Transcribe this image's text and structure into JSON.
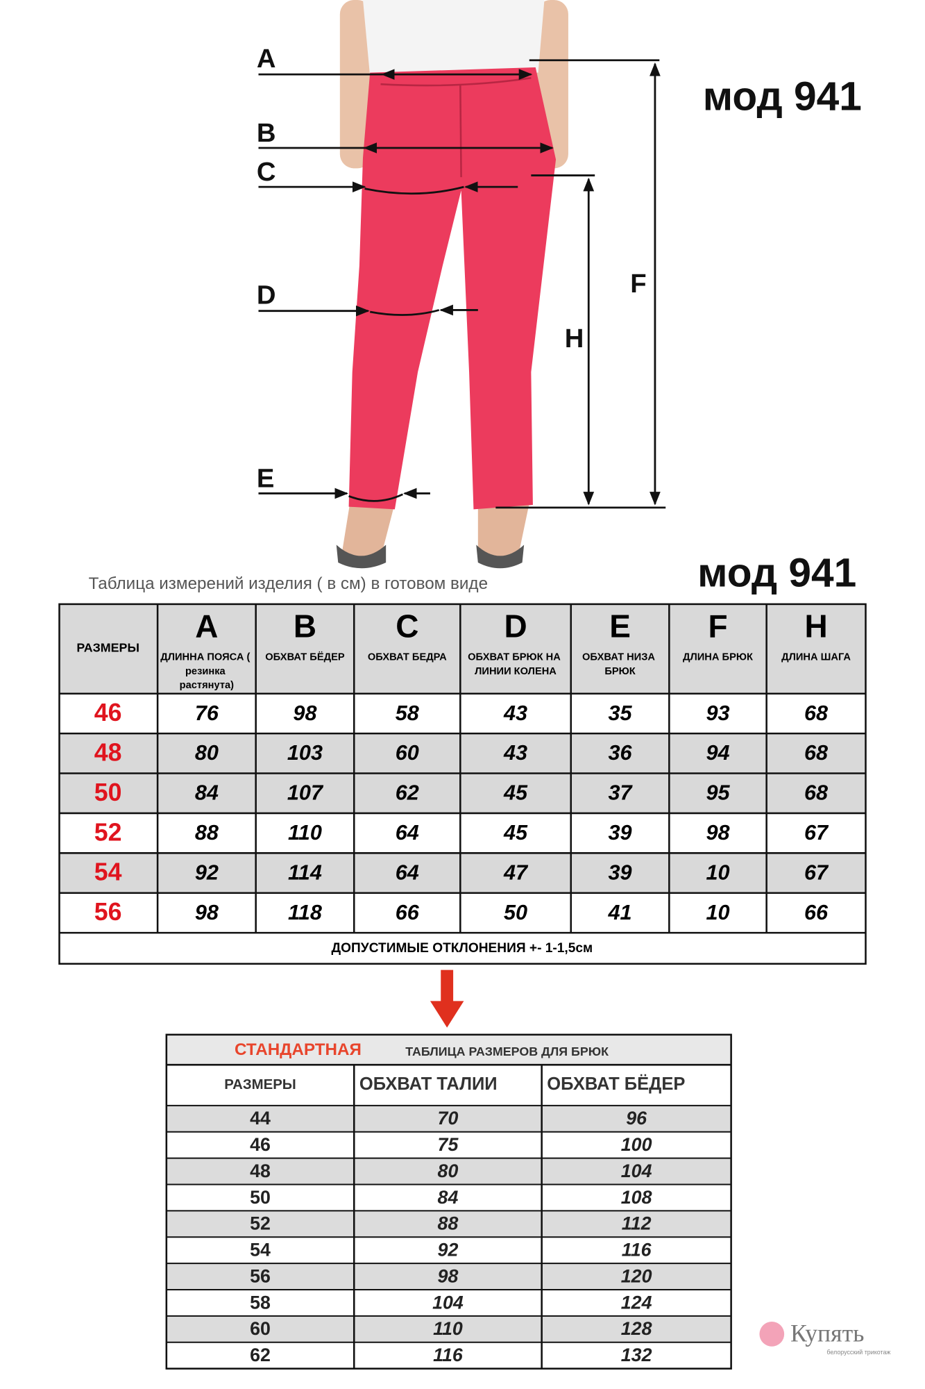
{
  "model": "мод 941",
  "illustration": {
    "labels": [
      "A",
      "B",
      "C",
      "D",
      "E",
      "F",
      "H"
    ]
  },
  "measurement_table": {
    "caption": "Таблица  измерений изделия ( в см) в готовом виде",
    "size_header": "РАЗМЕРЫ",
    "columns": [
      {
        "letter": "A",
        "label": "ДЛИННА ПОЯСА ( резинка растянута)"
      },
      {
        "letter": "B",
        "label": "ОБХВАТ БЁДЕР"
      },
      {
        "letter": "C",
        "label": "ОБХВАТ БЕДРА"
      },
      {
        "letter": "D",
        "label": "ОБХВАТ БРЮК НА ЛИНИИ КОЛЕНА"
      },
      {
        "letter": "E",
        "label": "ОБХВАТ НИЗА БРЮК"
      },
      {
        "letter": "F",
        "label": "ДЛИНА БРЮК"
      },
      {
        "letter": "H",
        "label": "ДЛИНА ШАГА"
      }
    ],
    "rows": [
      {
        "size": 46,
        "values": [
          76,
          98,
          58,
          43,
          35,
          93,
          68
        ]
      },
      {
        "size": 48,
        "values": [
          80,
          103,
          60,
          43,
          36,
          94,
          68
        ]
      },
      {
        "size": 50,
        "values": [
          84,
          107,
          62,
          45,
          37,
          95,
          68
        ]
      },
      {
        "size": 52,
        "values": [
          88,
          110,
          64,
          45,
          39,
          98,
          67
        ]
      },
      {
        "size": 54,
        "values": [
          92,
          114,
          64,
          47,
          39,
          10,
          67
        ]
      },
      {
        "size": 56,
        "values": [
          98,
          118,
          66,
          50,
          41,
          10,
          66
        ]
      }
    ],
    "note": "ДОПУСТИМЫЕ ОТКЛОНЕНИЯ  +-  1-1,5см"
  },
  "standard_table": {
    "title_accent": "СТАНДАРТНАЯ",
    "title": "ТАБЛИЦА РАЗМЕРОВ ДЛЯ БРЮК",
    "headers": [
      "РАЗМЕРЫ",
      "ОБХВАТ ТАЛИИ",
      "ОБХВАТ БЁДЕР"
    ],
    "rows": [
      [
        44,
        70,
        96
      ],
      [
        46,
        75,
        100
      ],
      [
        48,
        80,
        104
      ],
      [
        50,
        84,
        108
      ],
      [
        52,
        88,
        112
      ],
      [
        54,
        92,
        116
      ],
      [
        56,
        98,
        120
      ],
      [
        58,
        104,
        124
      ],
      [
        60,
        110,
        128
      ],
      [
        62,
        116,
        132
      ]
    ]
  },
  "logo": {
    "name": "Купять",
    "tagline": "белорусский трикотаж"
  }
}
